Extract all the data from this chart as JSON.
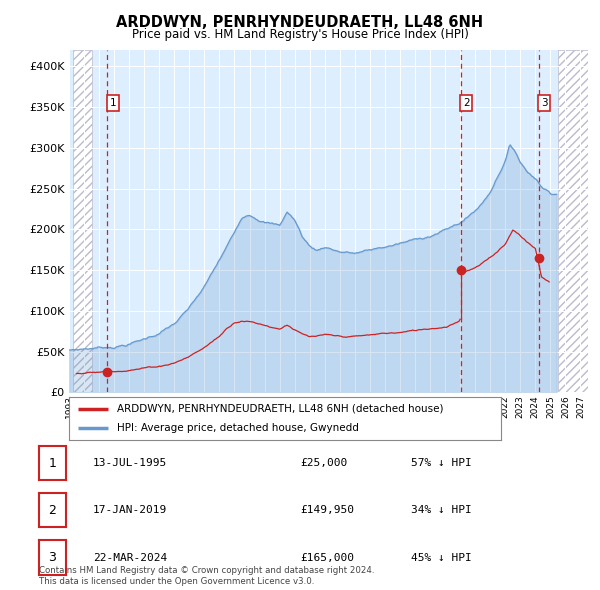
{
  "title": "ARDDWYN, PENRHYNDEUDRAETH, LL48 6NH",
  "subtitle": "Price paid vs. HM Land Registry's House Price Index (HPI)",
  "plot_bg_color": "#ddeeff",
  "hpi_color": "#6699cc",
  "price_color": "#cc2222",
  "ylim": [
    0,
    420000
  ],
  "yticks": [
    0,
    50000,
    100000,
    150000,
    200000,
    250000,
    300000,
    350000,
    400000
  ],
  "xlim_start": 1993.25,
  "xlim_end": 2027.5,
  "hatch_left_end": 1994.5,
  "hatch_right_start": 2025.5,
  "xtick_years": [
    1993,
    1994,
    1995,
    1996,
    1997,
    1998,
    1999,
    2000,
    2001,
    2002,
    2003,
    2004,
    2005,
    2006,
    2007,
    2008,
    2009,
    2010,
    2011,
    2012,
    2013,
    2014,
    2015,
    2016,
    2017,
    2018,
    2019,
    2020,
    2021,
    2022,
    2023,
    2024,
    2025,
    2026,
    2027
  ],
  "sale_dates": [
    1995.53,
    2019.04,
    2024.22
  ],
  "sale_prices": [
    25000,
    149950,
    165000
  ],
  "sale_labels": [
    "1",
    "2",
    "3"
  ],
  "sale_date_labels": [
    "13-JUL-1995",
    "17-JAN-2019",
    "22-MAR-2024"
  ],
  "sale_price_labels": [
    "£25,000",
    "£149,950",
    "£165,000"
  ],
  "sale_hpi_labels": [
    "57% ↓ HPI",
    "34% ↓ HPI",
    "45% ↓ HPI"
  ],
  "legend_line1": "ARDDWYN, PENRHYNDEUDRAETH, LL48 6NH (detached house)",
  "legend_line2": "HPI: Average price, detached house, Gwynedd",
  "footer_line1": "Contains HM Land Registry data © Crown copyright and database right 2024.",
  "footer_line2": "This data is licensed under the Open Government Licence v3.0.",
  "hpi_anchors": [
    [
      1993.0,
      52000
    ],
    [
      1994.0,
      54000
    ],
    [
      1995.0,
      56000
    ],
    [
      1995.5,
      57000
    ],
    [
      1996.0,
      58000
    ],
    [
      1997.0,
      62000
    ],
    [
      1998.0,
      68000
    ],
    [
      1999.0,
      76000
    ],
    [
      2000.0,
      87000
    ],
    [
      2001.0,
      105000
    ],
    [
      2002.0,
      130000
    ],
    [
      2003.0,
      162000
    ],
    [
      2004.0,
      195000
    ],
    [
      2004.5,
      215000
    ],
    [
      2005.0,
      220000
    ],
    [
      2006.0,
      213000
    ],
    [
      2007.0,
      208000
    ],
    [
      2007.5,
      225000
    ],
    [
      2008.0,
      215000
    ],
    [
      2008.5,
      195000
    ],
    [
      2009.0,
      183000
    ],
    [
      2009.5,
      178000
    ],
    [
      2010.0,
      183000
    ],
    [
      2011.0,
      178000
    ],
    [
      2012.0,
      176000
    ],
    [
      2013.0,
      179000
    ],
    [
      2014.0,
      183000
    ],
    [
      2015.0,
      187000
    ],
    [
      2016.0,
      191000
    ],
    [
      2017.0,
      197000
    ],
    [
      2018.0,
      204000
    ],
    [
      2018.5,
      208000
    ],
    [
      2019.0,
      213000
    ],
    [
      2019.5,
      220000
    ],
    [
      2020.0,
      228000
    ],
    [
      2020.5,
      238000
    ],
    [
      2021.0,
      252000
    ],
    [
      2021.5,
      272000
    ],
    [
      2022.0,
      292000
    ],
    [
      2022.3,
      310000
    ],
    [
      2022.7,
      302000
    ],
    [
      2023.0,
      290000
    ],
    [
      2023.5,
      278000
    ],
    [
      2024.0,
      272000
    ],
    [
      2024.5,
      260000
    ],
    [
      2025.0,
      255000
    ]
  ],
  "price_anchors": [
    [
      1993.5,
      23000
    ],
    [
      1994.5,
      24000
    ],
    [
      1995.4,
      24500
    ],
    [
      1996.0,
      26000
    ],
    [
      1997.0,
      29000
    ],
    [
      1998.0,
      31500
    ],
    [
      1999.0,
      34000
    ],
    [
      2000.0,
      39000
    ],
    [
      2001.0,
      47000
    ],
    [
      2002.0,
      58000
    ],
    [
      2003.0,
      72000
    ],
    [
      2003.5,
      82000
    ],
    [
      2004.0,
      90000
    ],
    [
      2004.5,
      93000
    ],
    [
      2005.0,
      92000
    ],
    [
      2006.0,
      88000
    ],
    [
      2007.0,
      84000
    ],
    [
      2007.5,
      90000
    ],
    [
      2008.0,
      84000
    ],
    [
      2008.5,
      78000
    ],
    [
      2009.0,
      74000
    ],
    [
      2010.0,
      75000
    ],
    [
      2011.0,
      72000
    ],
    [
      2012.0,
      72000
    ],
    [
      2013.0,
      73000
    ],
    [
      2014.0,
      75000
    ],
    [
      2015.0,
      76000
    ],
    [
      2016.0,
      78000
    ],
    [
      2017.0,
      81000
    ],
    [
      2018.0,
      84000
    ],
    [
      2018.9,
      92000
    ],
    [
      2019.0,
      95000
    ],
    [
      2019.04,
      149950
    ],
    [
      2019.1,
      152000
    ],
    [
      2019.5,
      155000
    ],
    [
      2020.0,
      158000
    ],
    [
      2020.5,
      163000
    ],
    [
      2021.0,
      170000
    ],
    [
      2021.5,
      178000
    ],
    [
      2022.0,
      188000
    ],
    [
      2022.3,
      198000
    ],
    [
      2022.5,
      205000
    ],
    [
      2023.0,
      199000
    ],
    [
      2023.5,
      190000
    ],
    [
      2024.0,
      183000
    ],
    [
      2024.22,
      165000
    ],
    [
      2024.4,
      148000
    ],
    [
      2024.8,
      143000
    ],
    [
      2025.0,
      140000
    ]
  ]
}
